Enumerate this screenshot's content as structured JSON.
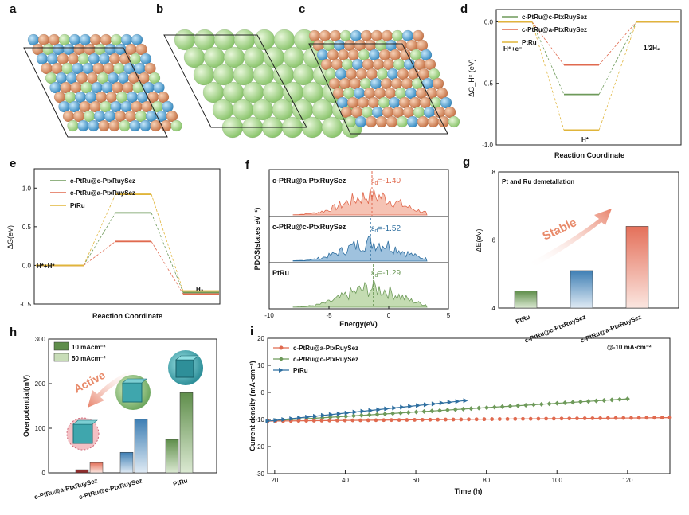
{
  "panels": {
    "a": "a",
    "b": "b",
    "c": "c",
    "d": "d",
    "e": "e",
    "f": "f",
    "g": "g",
    "h": "h",
    "i": "i"
  },
  "colors": {
    "green": "#6e9a5a",
    "red": "#e06a4f",
    "gold": "#e0b53a",
    "blue": "#2f6fa0",
    "pt": "#d58c63",
    "ru": "#58a6d6",
    "se": "#a9d58e"
  },
  "chart_data": [
    {
      "id": "d",
      "type": "line",
      "title": "",
      "xlabel": "Reaction Coordinate",
      "ylabel": "ΔG_H* (eV)",
      "ylim": [
        -1.0,
        0.1
      ],
      "yticks": [
        "0.0",
        "-0.5",
        "-1.0"
      ],
      "states": [
        "H⁺+e⁻",
        "H*",
        "1/2H₂"
      ],
      "series": [
        {
          "name": "c-PtRu@c-PtxRuySez",
          "values": [
            0,
            -0.59,
            0
          ]
        },
        {
          "name": "c-PtRu@a-PtxRuySez",
          "values": [
            0,
            -0.35,
            0
          ]
        },
        {
          "name": "PtRu",
          "values": [
            0,
            -0.88,
            0
          ]
        }
      ],
      "labels": {
        "start": "H⁺+e⁻",
        "mid": "H*",
        "end": "1/2H₂"
      }
    },
    {
      "id": "e",
      "type": "line",
      "xlabel": "Reaction Coordinate",
      "ylabel": "ΔG(eV)",
      "ylim": [
        -0.5,
        1.25
      ],
      "yticks": [
        "1.0",
        "0.5",
        "0.0",
        "-0.5"
      ],
      "series": [
        {
          "name": "c-PtRu@c-PtxRuySez",
          "values": [
            0,
            0.68,
            -0.35
          ]
        },
        {
          "name": "c-PtRu@a-PtxRuySez",
          "values": [
            0,
            0.31,
            -0.37
          ]
        },
        {
          "name": "PtRu",
          "values": [
            0,
            0.92,
            -0.33
          ]
        }
      ],
      "labels": {
        "start": "H*+H*",
        "end": "H₂"
      }
    },
    {
      "id": "f",
      "type": "area",
      "xlabel": "Energy(eV)",
      "ylabel": "PDOS(states eV⁻¹)",
      "xlim": [
        -10,
        5
      ],
      "xticks": [
        "-10",
        "-5",
        "0",
        "5"
      ],
      "series": [
        {
          "name": "c-PtRu@a-PtxRuySez",
          "d_band_center": "-1.40",
          "ed_text": "=-1.40"
        },
        {
          "name": "c-PtRu@c-PtxRuySez",
          "d_band_center": "-1.52",
          "ed_text": "=-1.52"
        },
        {
          "name": "PtRu",
          "d_band_center": "-1.29",
          "ed_text": "=-1.29"
        }
      ]
    },
    {
      "id": "g",
      "type": "bar",
      "title": "Pt and Ru demetallation",
      "ylabel": "ΔE(eV)",
      "ylim": [
        4,
        8
      ],
      "yticks": [
        "8",
        "6",
        "4"
      ],
      "categories": [
        "PtRu",
        "c-PtRu@c-PtxRuySez",
        "c-PtRu@a-PtxRuySez"
      ],
      "values": [
        4.5,
        5.1,
        6.4
      ],
      "annotation": "Stable"
    },
    {
      "id": "h",
      "type": "bar",
      "ylabel": "Overpotential(mV)",
      "ylim": [
        0,
        300
      ],
      "yticks": [
        "300",
        "200",
        "100",
        "0"
      ],
      "categories": [
        "c-PtRu@a-PtxRuySez",
        "c-PtRu@c-PtxRuySez",
        "PtRu"
      ],
      "series": [
        {
          "name": "10 mAcm⁻²",
          "values": [
            7,
            46,
            75
          ]
        },
        {
          "name": "50 mAcm⁻²",
          "values": [
            23,
            120,
            180
          ]
        }
      ],
      "annotation": "Active"
    },
    {
      "id": "i",
      "type": "line",
      "xlabel": "Time (h)",
      "ylabel": "Current density (mA·cm⁻²)",
      "xlim": [
        18,
        132
      ],
      "ylim": [
        -30,
        20
      ],
      "xticks": [
        "20",
        "40",
        "60",
        "80",
        "100",
        "120"
      ],
      "yticks": [
        "20",
        "10",
        "0",
        "-10",
        "-20",
        "-30"
      ],
      "note": "@-10 mA·cm⁻²",
      "series": [
        {
          "name": "c-PtRu@a-PtxRuySez",
          "x": [
            18,
            132
          ],
          "y": [
            -10.6,
            -9.3
          ]
        },
        {
          "name": "c-PtRu@c-PtxRuySez",
          "x": [
            18,
            120
          ],
          "y": [
            -10.6,
            -2.4
          ]
        },
        {
          "name": "PtRu",
          "x": [
            18,
            74
          ],
          "y": [
            -10.6,
            -3.0
          ]
        }
      ]
    }
  ]
}
